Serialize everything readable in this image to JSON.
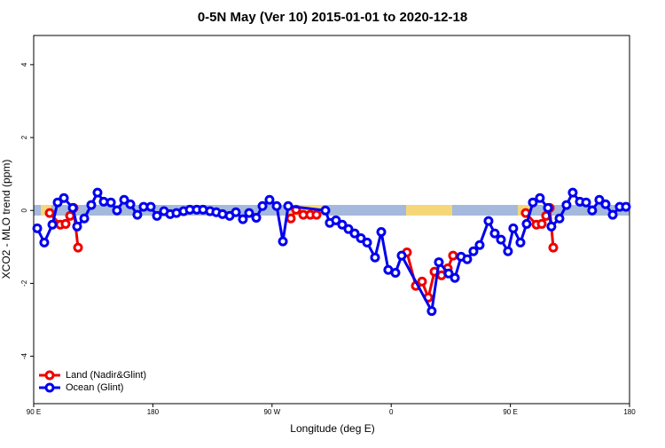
{
  "chart_data": {
    "type": "line",
    "title": "0-5N May (Ver 10)   2015-01-01 to 2020-12-18",
    "x_label": "Longitude (deg E)",
    "y_label": "XCO2 - MLO trend (ppm)",
    "xlim": [
      90,
      540
    ],
    "xticks": [
      {
        "value": 90,
        "label": "90 E"
      },
      180,
      {
        "value": 270,
        "label": "90 W"
      },
      {
        "value": 360,
        "label": "0"
      },
      {
        "value": 450,
        "label": "90 E"
      },
      {
        "value": 540,
        "label": "180"
      }
    ],
    "ylim": [
      -5.3,
      4.8
    ],
    "yticks": [
      -4,
      -2,
      0,
      2,
      4
    ],
    "legend": "bottom-left",
    "series": [
      {
        "name": "Ocean (Glint)",
        "color": "#0000ee",
        "x": [
          92.7,
          98.0,
          104.1,
          108.1,
          112.8,
          119.5,
          122.8,
          128.2,
          133.5,
          138.2,
          142.9,
          148.3,
          152.9,
          158.3,
          163.0,
          168.3,
          173.0,
          178.4,
          183.1,
          188.4,
          193.1,
          197.8,
          203.2,
          207.9,
          213.2,
          217.9,
          223.2,
          227.9,
          232.6,
          238.0,
          242.7,
          248.0,
          252.7,
          258.1,
          262.8,
          268.1,
          273.5,
          278.2,
          282.2,
          310.3,
          313.6,
          318.3,
          323.0,
          327.7,
          332.4,
          337.1,
          341.8,
          347.8,
          352.5,
          357.8,
          363.2,
          367.9,
          390.6,
          396.0,
          403.4,
          408.1,
          412.8,
          417.4,
          422.1,
          426.8,
          433.5,
          438.2,
          442.9,
          448.2,
          452.2,
          457.6,
          462.3,
          467.0,
          472.3,
          478.4,
          481.0,
          487.1,
          492.4,
          497.1,
          502.5,
          507.2,
          511.8,
          517.2,
          521.9,
          527.3,
          532.6,
          537.3
        ],
        "values": [
          -0.49,
          -0.88,
          -0.39,
          0.22,
          0.34,
          0.07,
          -0.44,
          -0.22,
          0.15,
          0.49,
          0.24,
          0.22,
          0.0,
          0.29,
          0.17,
          -0.12,
          0.1,
          0.1,
          -0.15,
          -0.02,
          -0.1,
          -0.07,
          -0.02,
          0.02,
          0.02,
          0.02,
          -0.02,
          -0.05,
          -0.1,
          -0.15,
          -0.05,
          -0.24,
          -0.07,
          -0.2,
          0.12,
          0.29,
          0.12,
          -0.85,
          0.12,
          0.0,
          -0.34,
          -0.27,
          -0.39,
          -0.51,
          -0.63,
          -0.76,
          -0.88,
          -1.29,
          -0.59,
          -1.63,
          -1.71,
          -1.24,
          -2.76,
          -1.42,
          -1.73,
          -1.85,
          -1.27,
          -1.34,
          -1.12,
          -0.95,
          -0.29,
          -0.63,
          -0.8,
          -1.12,
          -0.49,
          -0.88,
          -0.37,
          0.22,
          0.34,
          0.07,
          -0.44,
          -0.22,
          0.15,
          0.49,
          0.24,
          0.22,
          0.0,
          0.29,
          0.17,
          -0.12,
          0.1,
          0.1
        ]
      },
      {
        "name": "Land (Nadir&Glint)",
        "color": "#ee0000",
        "x": [
          102.1,
          110.1,
          114.1,
          117.5,
          120.1,
          123.5,
          null,
          284.2,
          288.2,
          293.6,
          298.9,
          303.6,
          null,
          371.9,
          378.6,
          383.3,
          388.0,
          392.7,
          398.0,
          402.7,
          406.7,
          null,
          461.6,
          469.7,
          473.7,
          477.0,
          479.7,
          482.4
        ],
        "values": [
          -0.07,
          -0.39,
          -0.37,
          -0.15,
          0.07,
          -1.02,
          null,
          -0.22,
          0.02,
          -0.12,
          -0.12,
          -0.12,
          null,
          -1.15,
          -2.07,
          -1.95,
          -2.39,
          -1.68,
          -1.78,
          -1.59,
          -1.24,
          null,
          -0.07,
          -0.39,
          -0.37,
          -0.15,
          0.07,
          -1.02
        ]
      }
    ]
  }
}
